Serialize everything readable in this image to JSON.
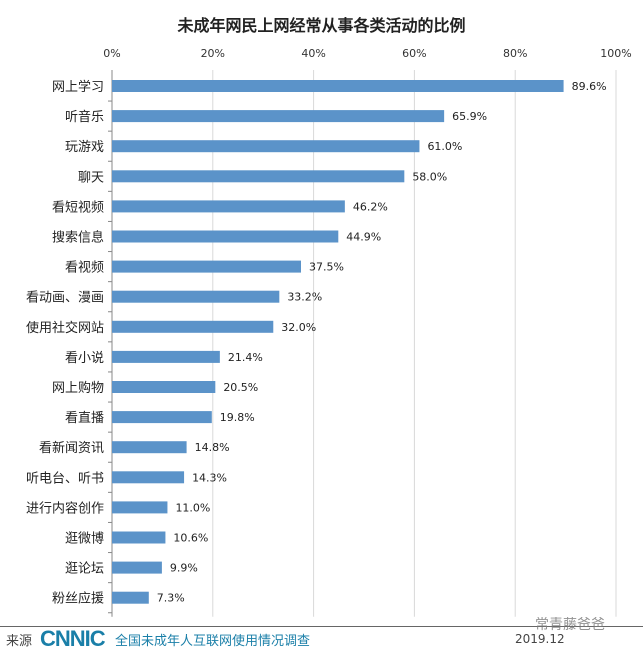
{
  "chart_data": {
    "type": "bar",
    "orientation": "horizontal",
    "title": "未成年网民上网经常从事各类活动的比例",
    "categories": [
      "网上学习",
      "听音乐",
      "玩游戏",
      "聊天",
      "看短视频",
      "搜索信息",
      "看视频",
      "看动画、漫画",
      "使用社交网站",
      "看小说",
      "网上购物",
      "看直播",
      "看新闻资讯",
      "听电台、听书",
      "进行内容创作",
      "逛微博",
      "逛论坛",
      "粉丝应援"
    ],
    "values": [
      89.6,
      65.9,
      61.0,
      58.0,
      46.2,
      44.9,
      37.5,
      33.2,
      32.0,
      21.4,
      20.5,
      19.8,
      14.8,
      14.3,
      11.0,
      10.6,
      9.9,
      7.3
    ],
    "value_labels": [
      "89.6%",
      "65.9%",
      "61.0%",
      "58.0%",
      "46.2%",
      "44.9%",
      "37.5%",
      "33.2%",
      "32.0%",
      "21.4%",
      "20.5%",
      "19.8%",
      "14.8%",
      "14.3%",
      "11.0%",
      "10.6%",
      "9.9%",
      "7.3%"
    ],
    "xlim": [
      0,
      100
    ],
    "xticks": [
      "0%",
      "20%",
      "40%",
      "60%",
      "80%",
      "100%"
    ],
    "xaxis_position": "top",
    "grid": true,
    "bar_color": "#5b93c9"
  },
  "footer": {
    "source_label": "来源",
    "logo": "CNNIC",
    "survey": "全国未成年人互联网使用情况调查",
    "date": "2019.12",
    "watermark": "常青藤爸爸"
  }
}
